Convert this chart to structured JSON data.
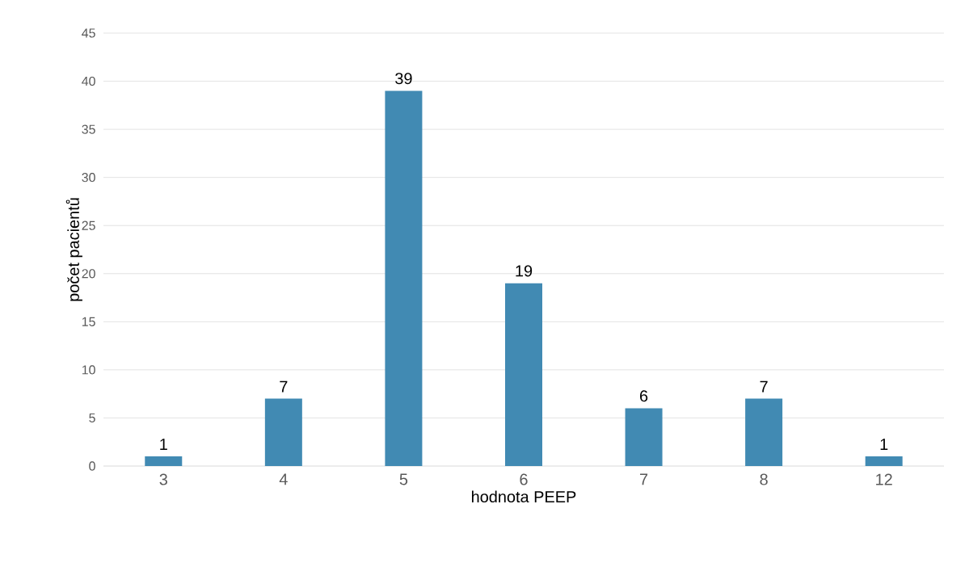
{
  "chart_data": {
    "type": "bar",
    "xlabel": "hodnota PEEP",
    "ylabel": "počet pacientů",
    "categories": [
      "3",
      "4",
      "5",
      "6",
      "7",
      "8",
      "12"
    ],
    "values": [
      1,
      7,
      39,
      19,
      6,
      7,
      1
    ],
    "color": "#418ab3",
    "ylim": [
      0,
      45
    ],
    "yticks": [
      0,
      5,
      10,
      15,
      20,
      25,
      30,
      35,
      40,
      45
    ],
    "grid": "y",
    "data_labels": true
  }
}
